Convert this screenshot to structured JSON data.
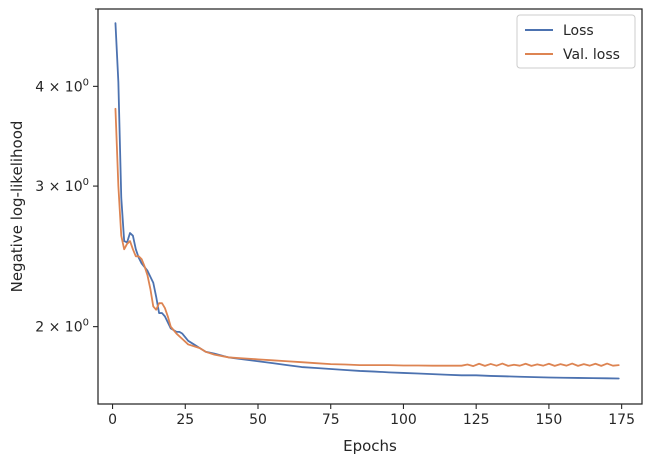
{
  "chart_data": {
    "type": "line",
    "xlabel": "Epochs",
    "ylabel": "Negative log-likelihood",
    "xlim": [
      -5,
      182
    ],
    "ylim": [
      1.6,
      5.0
    ],
    "yscale": "log",
    "grid": false,
    "legend_position": "top-right",
    "x_ticks": [
      {
        "value": 0,
        "label": "0"
      },
      {
        "value": 25,
        "label": "25"
      },
      {
        "value": 50,
        "label": "50"
      },
      {
        "value": 75,
        "label": "75"
      },
      {
        "value": 100,
        "label": "100"
      },
      {
        "value": 125,
        "label": "125"
      },
      {
        "value": 150,
        "label": "150"
      },
      {
        "value": 175,
        "label": "175"
      }
    ],
    "y_ticks": [
      {
        "value": 2,
        "base": "2",
        "times": "×",
        "exp_base": "10",
        "exp": "0"
      },
      {
        "value": 3,
        "base": "3",
        "times": "×",
        "exp_base": "10",
        "exp": "0"
      },
      {
        "value": 4,
        "base": "4",
        "times": "×",
        "exp_base": "10",
        "exp": "0"
      }
    ],
    "y_minor_ticks": [
      5
    ],
    "series": [
      {
        "name": "Loss",
        "color": "#4c72b0",
        "points": [
          [
            1,
            4.8
          ],
          [
            2,
            4.05
          ],
          [
            3,
            2.9
          ],
          [
            4,
            2.56
          ],
          [
            5,
            2.55
          ],
          [
            6,
            2.62
          ],
          [
            7,
            2.6
          ],
          [
            8,
            2.5
          ],
          [
            9,
            2.44
          ],
          [
            10,
            2.4
          ],
          [
            12,
            2.35
          ],
          [
            14,
            2.27
          ],
          [
            15,
            2.18
          ],
          [
            16,
            2.08
          ],
          [
            17,
            2.08
          ],
          [
            18,
            2.06
          ],
          [
            20,
            1.99
          ],
          [
            22,
            1.97
          ],
          [
            23,
            1.97
          ],
          [
            24,
            1.96
          ],
          [
            26,
            1.92
          ],
          [
            28,
            1.9
          ],
          [
            30,
            1.88
          ],
          [
            32,
            1.86
          ],
          [
            35,
            1.85
          ],
          [
            40,
            1.83
          ],
          [
            45,
            1.82
          ],
          [
            50,
            1.81
          ],
          [
            55,
            1.8
          ],
          [
            60,
            1.79
          ],
          [
            65,
            1.78
          ],
          [
            70,
            1.775
          ],
          [
            75,
            1.77
          ],
          [
            80,
            1.765
          ],
          [
            85,
            1.76
          ],
          [
            90,
            1.757
          ],
          [
            95,
            1.753
          ],
          [
            100,
            1.75
          ],
          [
            105,
            1.747
          ],
          [
            110,
            1.744
          ],
          [
            115,
            1.741
          ],
          [
            120,
            1.738
          ],
          [
            125,
            1.738
          ],
          [
            130,
            1.735
          ],
          [
            135,
            1.733
          ],
          [
            140,
            1.731
          ],
          [
            145,
            1.729
          ],
          [
            150,
            1.727
          ],
          [
            155,
            1.726
          ],
          [
            160,
            1.725
          ],
          [
            165,
            1.724
          ],
          [
            170,
            1.723
          ],
          [
            174,
            1.722
          ]
        ]
      },
      {
        "name": "Val. loss",
        "color": "#dd8452",
        "points": [
          [
            1,
            3.75
          ],
          [
            2,
            3.0
          ],
          [
            3,
            2.6
          ],
          [
            4,
            2.5
          ],
          [
            5,
            2.54
          ],
          [
            6,
            2.56
          ],
          [
            7,
            2.5
          ],
          [
            8,
            2.45
          ],
          [
            9,
            2.45
          ],
          [
            10,
            2.43
          ],
          [
            11,
            2.38
          ],
          [
            12,
            2.32
          ],
          [
            13,
            2.23
          ],
          [
            14,
            2.12
          ],
          [
            15,
            2.1
          ],
          [
            16,
            2.14
          ],
          [
            17,
            2.14
          ],
          [
            18,
            2.11
          ],
          [
            19,
            2.06
          ],
          [
            20,
            2.0
          ],
          [
            21,
            1.98
          ],
          [
            22,
            1.96
          ],
          [
            24,
            1.93
          ],
          [
            26,
            1.9
          ],
          [
            28,
            1.89
          ],
          [
            30,
            1.88
          ],
          [
            32,
            1.86
          ],
          [
            35,
            1.845
          ],
          [
            40,
            1.83
          ],
          [
            45,
            1.825
          ],
          [
            50,
            1.82
          ],
          [
            55,
            1.815
          ],
          [
            60,
            1.81
          ],
          [
            65,
            1.805
          ],
          [
            70,
            1.8
          ],
          [
            75,
            1.795
          ],
          [
            80,
            1.793
          ],
          [
            85,
            1.79
          ],
          [
            90,
            1.79
          ],
          [
            95,
            1.79
          ],
          [
            100,
            1.788
          ],
          [
            105,
            1.788
          ],
          [
            110,
            1.787
          ],
          [
            115,
            1.787
          ],
          [
            120,
            1.787
          ],
          [
            122,
            1.793
          ],
          [
            124,
            1.785
          ],
          [
            126,
            1.797
          ],
          [
            128,
            1.786
          ],
          [
            130,
            1.796
          ],
          [
            132,
            1.787
          ],
          [
            134,
            1.798
          ],
          [
            136,
            1.786
          ],
          [
            138,
            1.792
          ],
          [
            140,
            1.787
          ],
          [
            142,
            1.797
          ],
          [
            144,
            1.786
          ],
          [
            146,
            1.794
          ],
          [
            148,
            1.787
          ],
          [
            150,
            1.797
          ],
          [
            152,
            1.786
          ],
          [
            154,
            1.795
          ],
          [
            156,
            1.787
          ],
          [
            158,
            1.798
          ],
          [
            160,
            1.786
          ],
          [
            162,
            1.795
          ],
          [
            164,
            1.787
          ],
          [
            166,
            1.797
          ],
          [
            168,
            1.786
          ],
          [
            170,
            1.798
          ],
          [
            172,
            1.787
          ],
          [
            174,
            1.79
          ]
        ]
      }
    ]
  }
}
